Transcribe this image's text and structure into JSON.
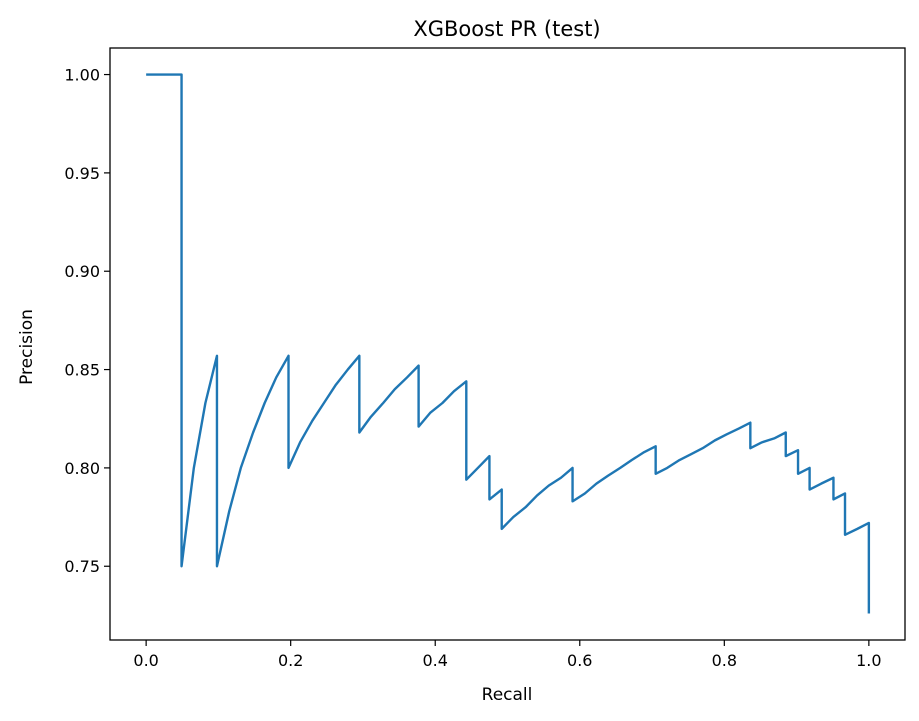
{
  "chart_data": {
    "type": "line",
    "title": "XGBoost PR (test)",
    "xlabel": "Recall",
    "ylabel": "Precision",
    "xlim": [
      -0.05,
      1.05
    ],
    "ylim": [
      0.7125,
      1.0135
    ],
    "grid": false,
    "legend": "none",
    "line_color": "#1f77b4",
    "x_ticks": [
      0.0,
      0.2,
      0.4,
      0.6,
      0.8,
      1.0
    ],
    "x_tick_labels": [
      "0.0",
      "0.2",
      "0.4",
      "0.6",
      "0.8",
      "1.0"
    ],
    "y_ticks": [
      0.75,
      0.8,
      0.85,
      0.9,
      0.95,
      1.0
    ],
    "y_tick_labels": [
      "0.75",
      "0.80",
      "0.85",
      "0.90",
      "0.95",
      "1.00"
    ],
    "series": [
      {
        "x": [
          0.0,
          0.049,
          0.049,
          0.049,
          0.066,
          0.082,
          0.098,
          0.098,
          0.098,
          0.115,
          0.131,
          0.148,
          0.164,
          0.18,
          0.197,
          0.197,
          0.213,
          0.23,
          0.246,
          0.262,
          0.279,
          0.295,
          0.295,
          0.311,
          0.328,
          0.344,
          0.361,
          0.377,
          0.377,
          0.393,
          0.41,
          0.426,
          0.443,
          0.443,
          0.459,
          0.475,
          0.475,
          0.492,
          0.492,
          0.508,
          0.525,
          0.541,
          0.557,
          0.574,
          0.59,
          0.59,
          0.607,
          0.623,
          0.639,
          0.656,
          0.672,
          0.689,
          0.705,
          0.705,
          0.721,
          0.738,
          0.754,
          0.77,
          0.787,
          0.803,
          0.82,
          0.836,
          0.836,
          0.852,
          0.869,
          0.885,
          0.885,
          0.902,
          0.902,
          0.918,
          0.918,
          0.934,
          0.951,
          0.951,
          0.967,
          0.967,
          0.984,
          1.0,
          1.0
        ],
        "y": [
          1.0,
          1.0,
          0.75,
          0.75,
          0.8,
          0.833,
          0.857,
          0.857,
          0.75,
          0.778,
          0.8,
          0.818,
          0.833,
          0.846,
          0.857,
          0.8,
          0.813,
          0.824,
          0.833,
          0.842,
          0.85,
          0.857,
          0.818,
          0.826,
          0.833,
          0.84,
          0.846,
          0.852,
          0.821,
          0.828,
          0.833,
          0.839,
          0.844,
          0.794,
          0.8,
          0.806,
          0.784,
          0.789,
          0.769,
          0.775,
          0.78,
          0.786,
          0.791,
          0.795,
          0.8,
          0.783,
          0.787,
          0.792,
          0.796,
          0.8,
          0.804,
          0.808,
          0.811,
          0.797,
          0.8,
          0.804,
          0.807,
          0.81,
          0.814,
          0.817,
          0.82,
          0.823,
          0.81,
          0.813,
          0.815,
          0.818,
          0.806,
          0.809,
          0.797,
          0.8,
          0.789,
          0.792,
          0.795,
          0.784,
          0.787,
          0.766,
          0.769,
          0.772,
          0.726
        ]
      }
    ]
  }
}
